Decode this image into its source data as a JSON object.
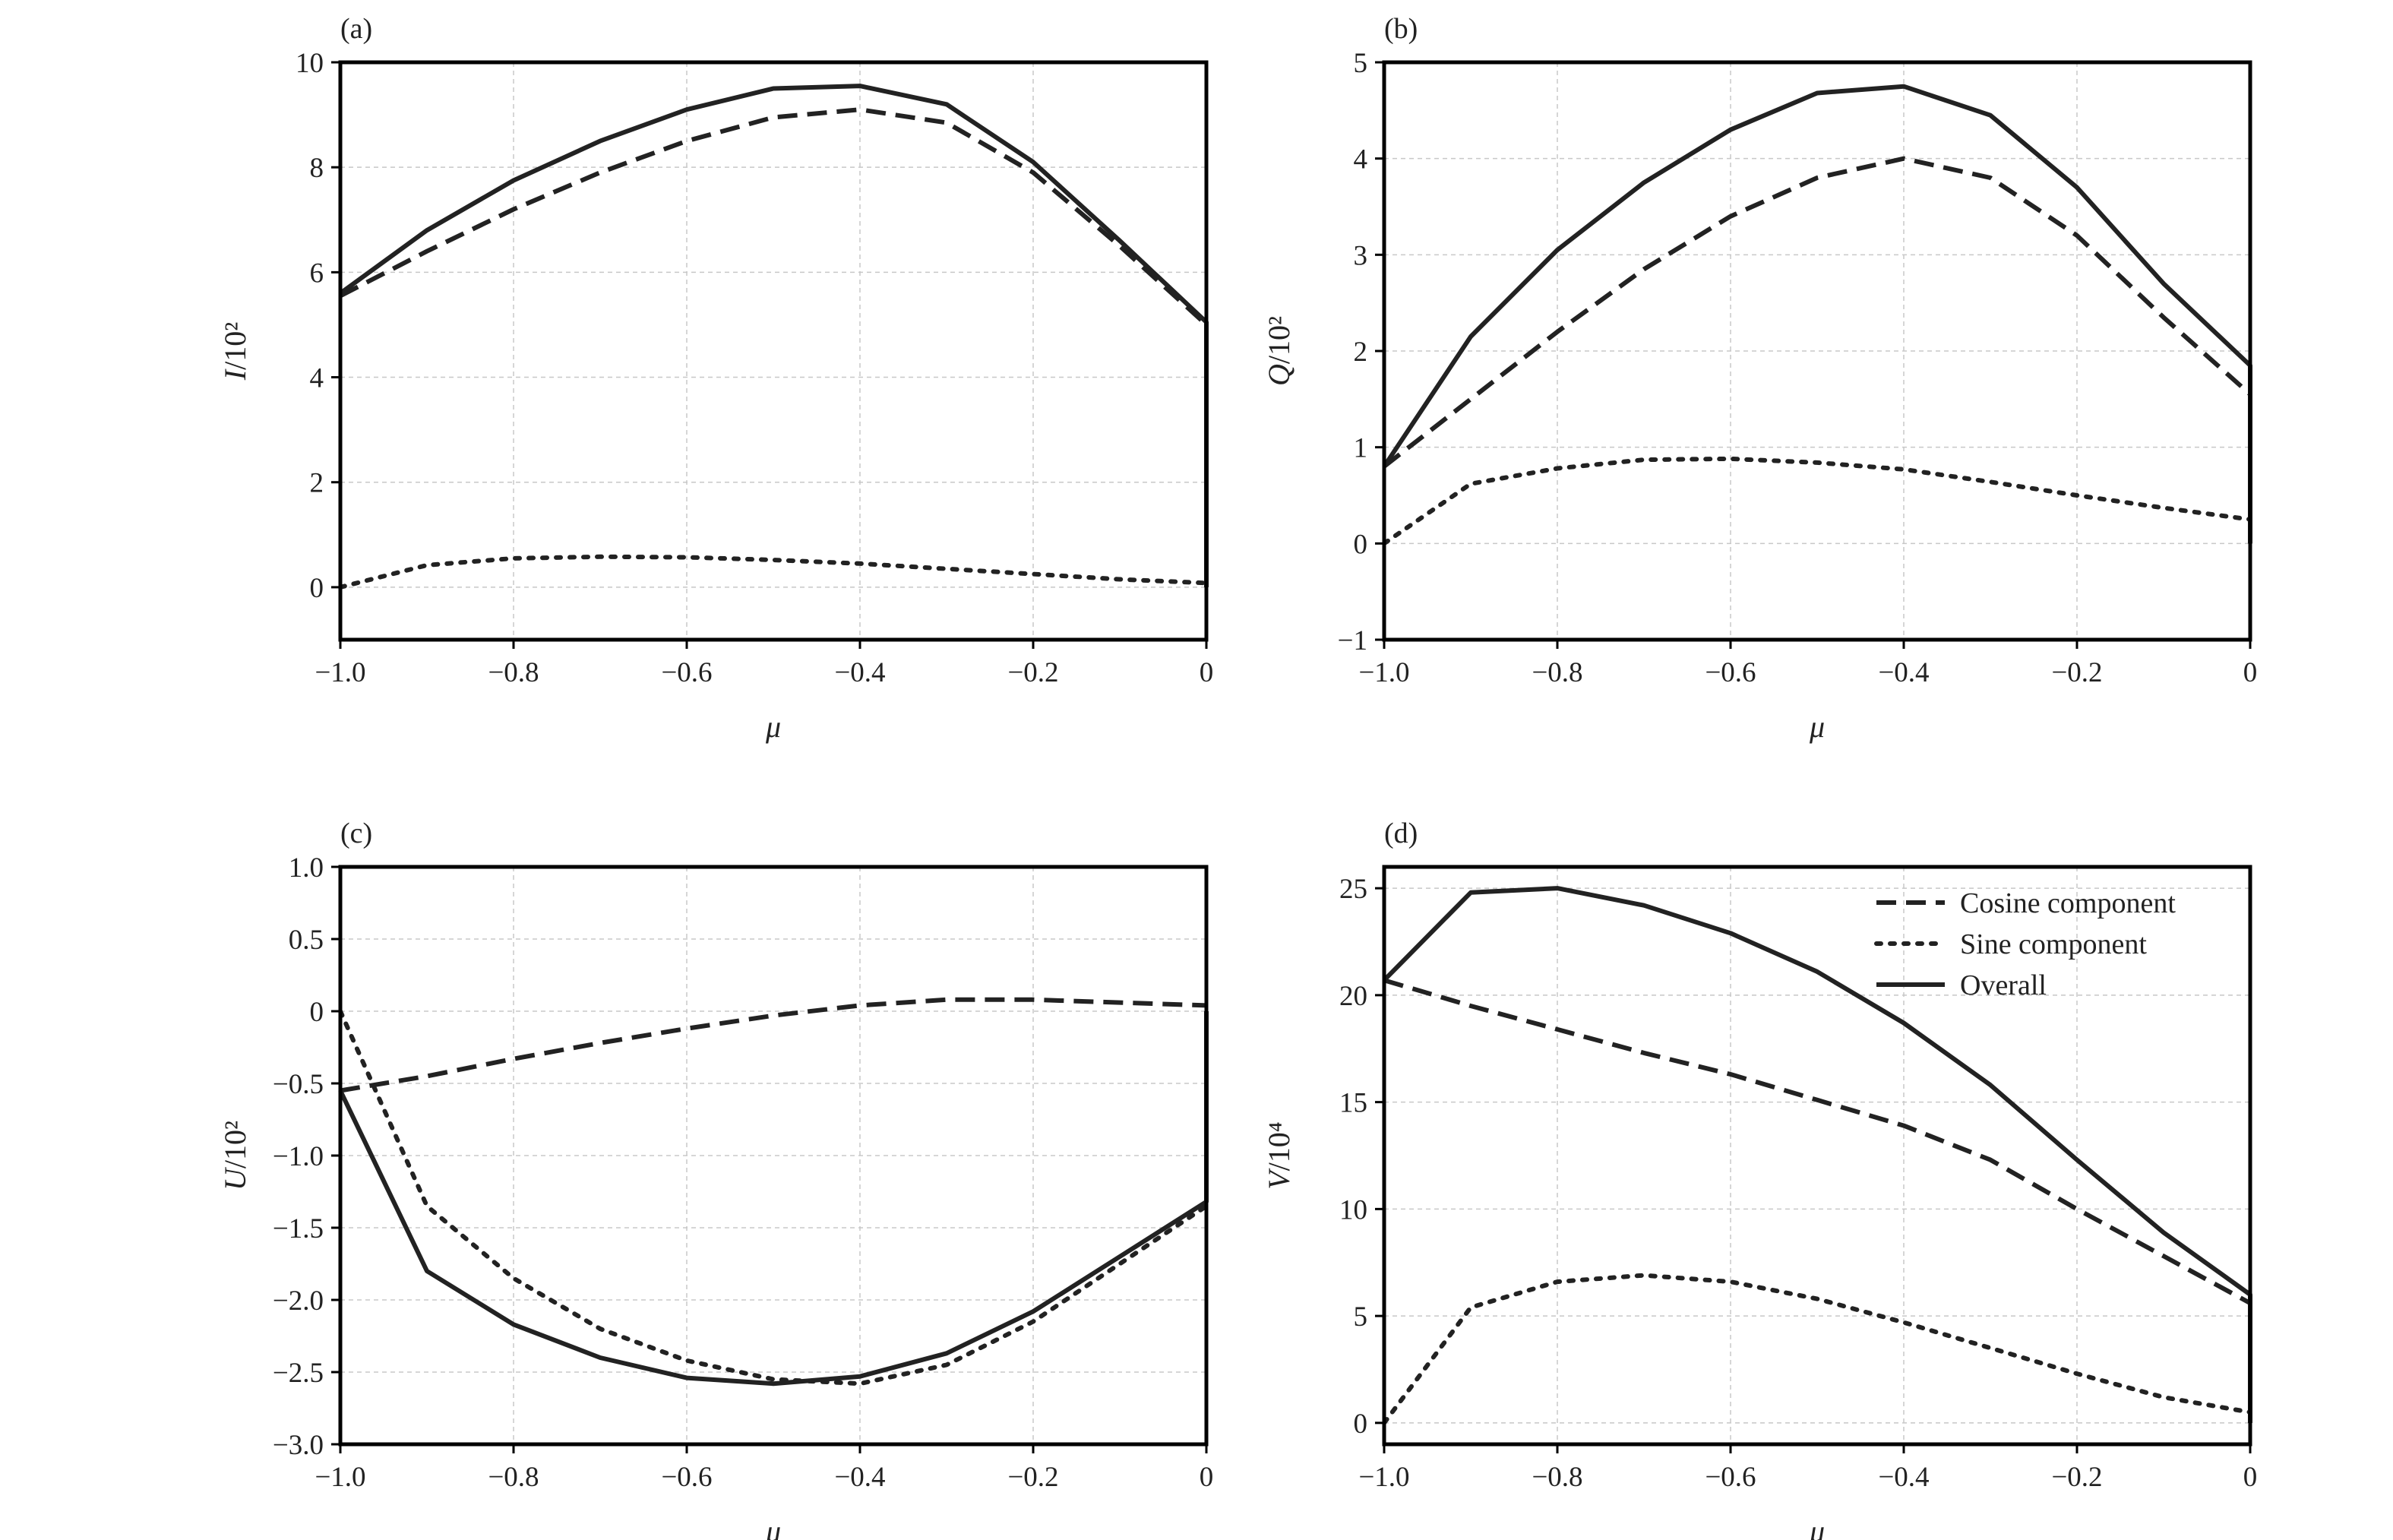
{
  "legend": {
    "entries": [
      {
        "key": "cosine",
        "label": "Cosine component"
      },
      {
        "key": "sine",
        "label": "Sine component"
      },
      {
        "key": "overall",
        "label": "Overall"
      }
    ]
  },
  "chart_data": [
    {
      "panel": "(a)",
      "type": "line",
      "xlabel": "μ",
      "ylabel_var": "I",
      "ylabel_unit": "/10²",
      "xlim": [
        -1.0,
        0
      ],
      "ylim": [
        -1,
        10
      ],
      "xticks": [
        -1.0,
        -0.8,
        -0.6,
        -0.4,
        -0.2,
        0
      ],
      "xtick_labels": [
        "−1.0",
        "−0.8",
        "−0.6",
        "−0.4",
        "−0.2",
        "0"
      ],
      "yticks": [
        0,
        2,
        4,
        6,
        8,
        10
      ],
      "ytick_labels": [
        "0",
        "2",
        "4",
        "6",
        "8",
        "10"
      ],
      "grid": true,
      "x": [
        -1.0,
        -0.9,
        -0.8,
        -0.7,
        -0.6,
        -0.5,
        -0.4,
        -0.3,
        -0.2,
        -0.1,
        0
      ],
      "series": [
        {
          "key": "cosine",
          "values": [
            5.55,
            6.4,
            7.2,
            7.9,
            8.5,
            8.95,
            9.1,
            8.85,
            7.9,
            6.5,
            5.0
          ]
        },
        {
          "key": "sine",
          "values": [
            0.0,
            0.42,
            0.55,
            0.58,
            0.57,
            0.52,
            0.45,
            0.35,
            0.25,
            0.15,
            0.08
          ]
        },
        {
          "key": "overall",
          "values": [
            5.6,
            6.8,
            7.75,
            8.5,
            9.1,
            9.5,
            9.55,
            9.2,
            8.1,
            6.6,
            5.05
          ]
        }
      ],
      "drop_to_zero_at_end": [
        "cosine",
        "overall"
      ]
    },
    {
      "panel": "(b)",
      "type": "line",
      "xlabel": "μ",
      "ylabel_var": "Q",
      "ylabel_unit": "/10²",
      "xlim": [
        -1.0,
        0
      ],
      "ylim": [
        -1,
        5
      ],
      "xticks": [
        -1.0,
        -0.8,
        -0.6,
        -0.4,
        -0.2,
        0
      ],
      "xtick_labels": [
        "−1.0",
        "−0.8",
        "−0.6",
        "−0.4",
        "−0.2",
        "0"
      ],
      "yticks": [
        -1,
        0,
        1,
        2,
        3,
        4,
        5
      ],
      "ytick_labels": [
        "−1",
        "0",
        "1",
        "2",
        "3",
        "4",
        "5"
      ],
      "grid": true,
      "x": [
        -1.0,
        -0.9,
        -0.8,
        -0.7,
        -0.6,
        -0.5,
        -0.4,
        -0.3,
        -0.2,
        -0.1,
        0
      ],
      "series": [
        {
          "key": "cosine",
          "values": [
            0.8,
            1.5,
            2.2,
            2.85,
            3.4,
            3.8,
            4.0,
            3.8,
            3.2,
            2.35,
            1.55
          ]
        },
        {
          "key": "sine",
          "values": [
            0.0,
            0.62,
            0.78,
            0.87,
            0.88,
            0.84,
            0.77,
            0.64,
            0.5,
            0.37,
            0.25
          ]
        },
        {
          "key": "overall",
          "values": [
            0.8,
            2.15,
            3.05,
            3.75,
            4.3,
            4.68,
            4.75,
            4.45,
            3.7,
            2.7,
            1.85
          ]
        }
      ],
      "drop_to_zero_at_end": [
        "cosine",
        "overall"
      ]
    },
    {
      "panel": "(c)",
      "type": "line",
      "xlabel": "μ",
      "ylabel_var": "U",
      "ylabel_unit": "/10²",
      "xlim": [
        -1.0,
        0
      ],
      "ylim": [
        -3.0,
        1.0
      ],
      "xticks": [
        -1.0,
        -0.8,
        -0.6,
        -0.4,
        -0.2,
        0
      ],
      "xtick_labels": [
        "−1.0",
        "−0.8",
        "−0.6",
        "−0.4",
        "−0.2",
        "0"
      ],
      "yticks": [
        -3.0,
        -2.5,
        -2.0,
        -1.5,
        -1.0,
        -0.5,
        0,
        0.5,
        1.0
      ],
      "ytick_labels": [
        "−3.0",
        "−2.5",
        "−2.0",
        "−1.5",
        "−1.0",
        "−0.5",
        "0",
        "0.5",
        "1.0"
      ],
      "grid": true,
      "x": [
        -1.0,
        -0.9,
        -0.8,
        -0.7,
        -0.6,
        -0.5,
        -0.4,
        -0.3,
        -0.2,
        -0.1,
        0
      ],
      "series": [
        {
          "key": "cosine",
          "values": [
            -0.55,
            -0.45,
            -0.33,
            -0.22,
            -0.12,
            -0.03,
            0.04,
            0.08,
            0.08,
            0.06,
            0.04
          ]
        },
        {
          "key": "sine",
          "values": [
            0.0,
            -1.35,
            -1.85,
            -2.2,
            -2.42,
            -2.55,
            -2.58,
            -2.45,
            -2.15,
            -1.75,
            -1.35
          ]
        },
        {
          "key": "overall",
          "values": [
            -0.55,
            -1.8,
            -2.17,
            -2.4,
            -2.54,
            -2.58,
            -2.53,
            -2.37,
            -2.08,
            -1.7,
            -1.32
          ]
        }
      ],
      "drop_to_zero_at_end": [
        "sine",
        "overall"
      ]
    },
    {
      "panel": "(d)",
      "type": "line",
      "xlabel": "μ",
      "ylabel_var": "V",
      "ylabel_unit": "/10⁴",
      "xlim": [
        -1.0,
        0
      ],
      "ylim": [
        -1,
        26
      ],
      "xticks": [
        -1.0,
        -0.8,
        -0.6,
        -0.4,
        -0.2,
        0
      ],
      "xtick_labels": [
        "−1.0",
        "−0.8",
        "−0.6",
        "−0.4",
        "−0.2",
        "0"
      ],
      "yticks": [
        0,
        5,
        10,
        15,
        20,
        25
      ],
      "ytick_labels": [
        "0",
        "5",
        "10",
        "15",
        "20",
        "25"
      ],
      "grid": true,
      "legend_position": "top-right",
      "x": [
        -1.0,
        -0.9,
        -0.8,
        -0.7,
        -0.6,
        -0.5,
        -0.4,
        -0.3,
        -0.2,
        -0.1,
        0
      ],
      "series": [
        {
          "key": "cosine",
          "values": [
            20.7,
            19.5,
            18.4,
            17.3,
            16.3,
            15.1,
            13.9,
            12.3,
            10.0,
            7.8,
            5.6
          ]
        },
        {
          "key": "sine",
          "values": [
            0.0,
            5.4,
            6.6,
            6.9,
            6.6,
            5.8,
            4.7,
            3.5,
            2.3,
            1.2,
            0.5
          ]
        },
        {
          "key": "overall",
          "values": [
            20.7,
            24.8,
            25.0,
            24.2,
            22.9,
            21.1,
            18.7,
            15.8,
            12.3,
            8.9,
            6.0
          ]
        }
      ],
      "drop_to_zero_at_end": [
        "cosine",
        "overall"
      ]
    }
  ]
}
